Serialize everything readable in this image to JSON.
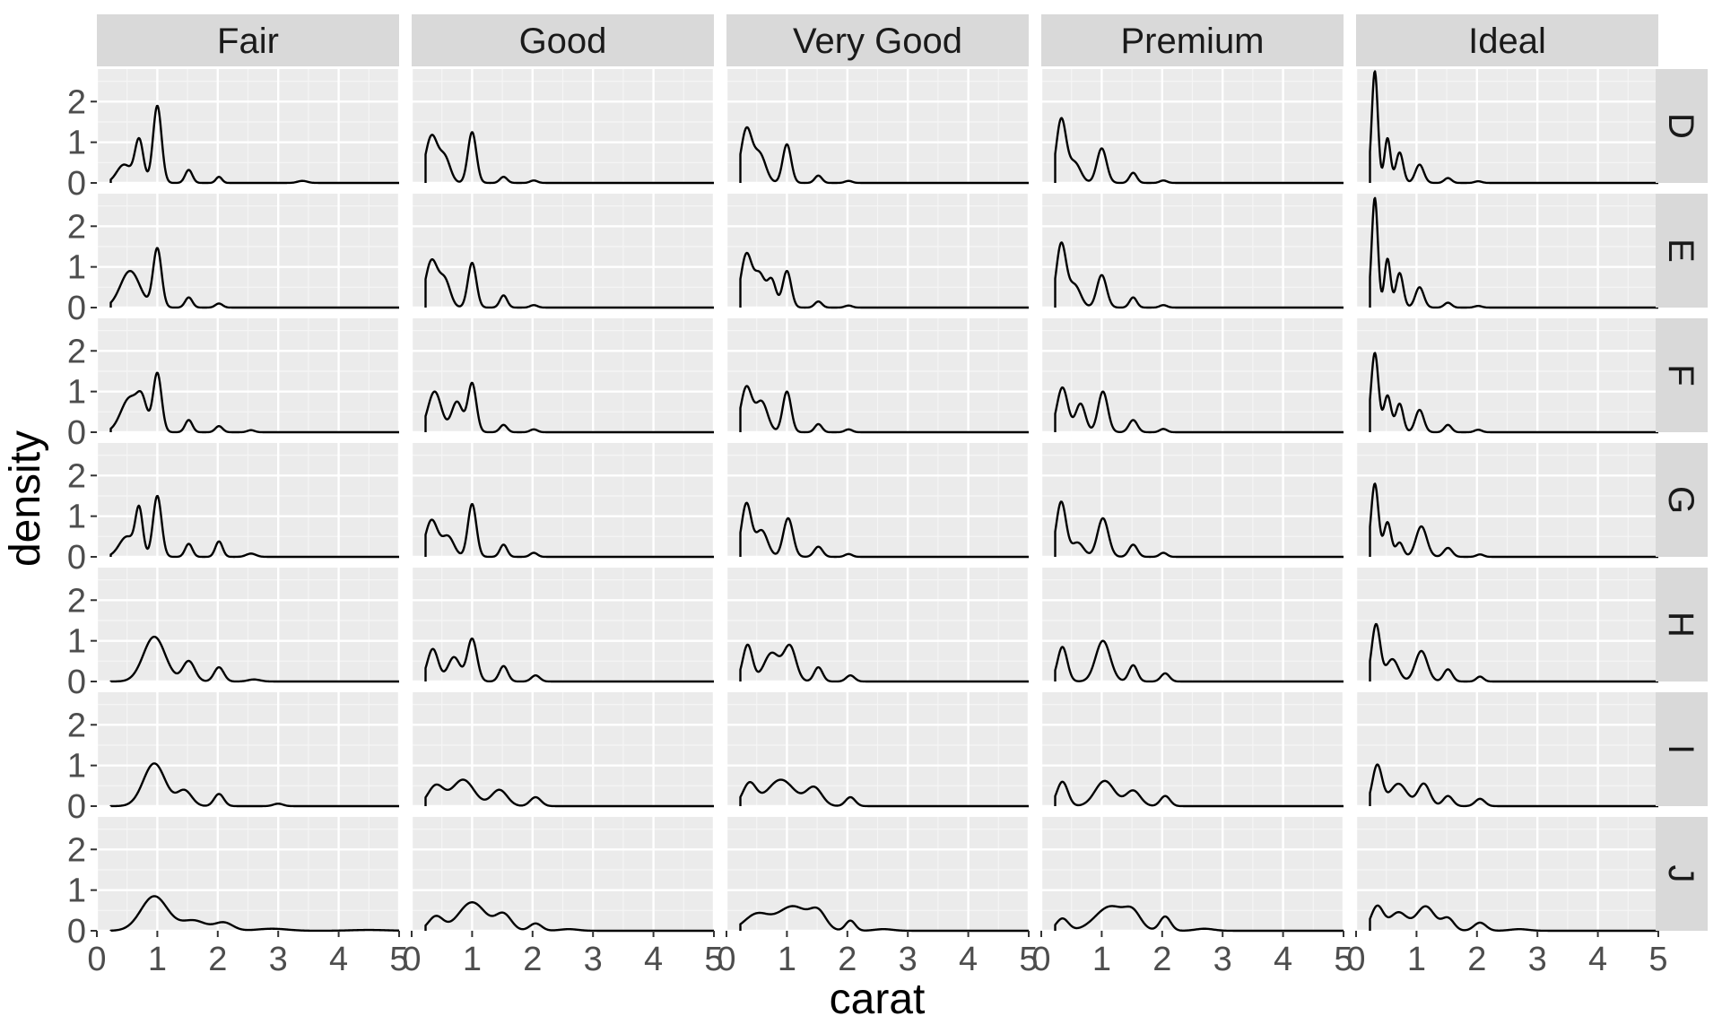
{
  "chart_data": {
    "type": "area",
    "xlabel": "carat",
    "ylabel": "density",
    "xlim": [
      0,
      5
    ],
    "ylim": [
      0,
      2.8
    ],
    "x_ticks": [
      0,
      1,
      2,
      3,
      4,
      5
    ],
    "x_tick_labels": [
      "0",
      "1",
      "2",
      "3",
      "4",
      "5"
    ],
    "y_ticks": [
      0,
      1,
      2
    ],
    "y_tick_labels": [
      "0",
      "1",
      "2"
    ],
    "facet_cols": [
      "Fair",
      "Good",
      "Very Good",
      "Premium",
      "Ideal"
    ],
    "facet_rows": [
      "D",
      "E",
      "F",
      "G",
      "H",
      "I",
      "J"
    ],
    "grid": true,
    "panels": [
      {
        "row": "D",
        "col": "Fair",
        "start": 0.23,
        "peaks": [
          [
            0.45,
            0.45,
            0.12
          ],
          [
            0.7,
            1.05,
            0.07
          ],
          [
            1.0,
            1.9,
            0.07
          ],
          [
            1.52,
            0.32,
            0.06
          ],
          [
            2.02,
            0.15,
            0.05
          ],
          [
            3.4,
            0.05,
            0.08
          ]
        ]
      },
      {
        "row": "D",
        "col": "Good",
        "start": 0.23,
        "peaks": [
          [
            0.33,
            1.15,
            0.1
          ],
          [
            0.55,
            0.6,
            0.09
          ],
          [
            1.0,
            1.25,
            0.07
          ],
          [
            1.52,
            0.15,
            0.06
          ],
          [
            2.02,
            0.06,
            0.06
          ]
        ]
      },
      {
        "row": "D",
        "col": "Very Good",
        "start": 0.23,
        "peaks": [
          [
            0.33,
            1.3,
            0.09
          ],
          [
            0.55,
            0.7,
            0.1
          ],
          [
            1.0,
            0.95,
            0.07
          ],
          [
            1.52,
            0.18,
            0.06
          ],
          [
            2.02,
            0.05,
            0.06
          ]
        ]
      },
      {
        "row": "D",
        "col": "Premium",
        "start": 0.23,
        "peaks": [
          [
            0.33,
            1.55,
            0.08
          ],
          [
            0.55,
            0.5,
            0.1
          ],
          [
            1.0,
            0.85,
            0.08
          ],
          [
            1.52,
            0.25,
            0.06
          ],
          [
            2.02,
            0.06,
            0.06
          ]
        ]
      },
      {
        "row": "D",
        "col": "Ideal",
        "start": 0.23,
        "peaks": [
          [
            0.31,
            2.75,
            0.05
          ],
          [
            0.52,
            1.1,
            0.05
          ],
          [
            0.72,
            0.75,
            0.06
          ],
          [
            1.05,
            0.45,
            0.07
          ],
          [
            1.52,
            0.12,
            0.06
          ],
          [
            2.02,
            0.04,
            0.06
          ]
        ]
      },
      {
        "row": "E",
        "col": "Fair",
        "start": 0.23,
        "peaks": [
          [
            0.55,
            0.9,
            0.16
          ],
          [
            1.0,
            1.45,
            0.07
          ],
          [
            1.52,
            0.25,
            0.06
          ],
          [
            2.02,
            0.1,
            0.06
          ]
        ]
      },
      {
        "row": "E",
        "col": "Good",
        "start": 0.23,
        "peaks": [
          [
            0.33,
            1.15,
            0.1
          ],
          [
            0.55,
            0.65,
            0.09
          ],
          [
            1.0,
            1.1,
            0.07
          ],
          [
            1.52,
            0.3,
            0.06
          ],
          [
            2.02,
            0.06,
            0.06
          ]
        ]
      },
      {
        "row": "E",
        "col": "Very Good",
        "start": 0.23,
        "peaks": [
          [
            0.33,
            1.3,
            0.09
          ],
          [
            0.55,
            0.8,
            0.09
          ],
          [
            0.75,
            0.65,
            0.07
          ],
          [
            1.0,
            0.9,
            0.07
          ],
          [
            1.52,
            0.15,
            0.06
          ],
          [
            2.02,
            0.05,
            0.06
          ]
        ]
      },
      {
        "row": "E",
        "col": "Premium",
        "start": 0.23,
        "peaks": [
          [
            0.33,
            1.55,
            0.08
          ],
          [
            0.55,
            0.55,
            0.1
          ],
          [
            1.0,
            0.8,
            0.08
          ],
          [
            1.52,
            0.25,
            0.06
          ],
          [
            2.02,
            0.06,
            0.06
          ]
        ]
      },
      {
        "row": "E",
        "col": "Ideal",
        "start": 0.23,
        "peaks": [
          [
            0.31,
            2.7,
            0.05
          ],
          [
            0.52,
            1.2,
            0.05
          ],
          [
            0.72,
            0.85,
            0.06
          ],
          [
            1.05,
            0.5,
            0.07
          ],
          [
            1.52,
            0.12,
            0.06
          ],
          [
            2.02,
            0.04,
            0.06
          ]
        ]
      },
      {
        "row": "F",
        "col": "Fair",
        "start": 0.23,
        "peaks": [
          [
            0.55,
            0.85,
            0.15
          ],
          [
            0.75,
            0.6,
            0.08
          ],
          [
            1.0,
            1.45,
            0.07
          ],
          [
            1.52,
            0.3,
            0.06
          ],
          [
            2.02,
            0.15,
            0.06
          ],
          [
            2.55,
            0.05,
            0.06
          ]
        ]
      },
      {
        "row": "F",
        "col": "Good",
        "start": 0.23,
        "peaks": [
          [
            0.38,
            1.0,
            0.11
          ],
          [
            0.75,
            0.75,
            0.09
          ],
          [
            1.0,
            1.2,
            0.07
          ],
          [
            1.52,
            0.18,
            0.06
          ],
          [
            2.02,
            0.07,
            0.06
          ]
        ]
      },
      {
        "row": "F",
        "col": "Very Good",
        "start": 0.23,
        "peaks": [
          [
            0.33,
            1.1,
            0.09
          ],
          [
            0.58,
            0.75,
            0.1
          ],
          [
            1.0,
            1.0,
            0.07
          ],
          [
            1.52,
            0.2,
            0.06
          ],
          [
            2.02,
            0.07,
            0.06
          ]
        ]
      },
      {
        "row": "F",
        "col": "Premium",
        "start": 0.23,
        "peaks": [
          [
            0.35,
            1.1,
            0.09
          ],
          [
            0.65,
            0.7,
            0.08
          ],
          [
            1.02,
            1.0,
            0.08
          ],
          [
            1.52,
            0.3,
            0.07
          ],
          [
            2.02,
            0.08,
            0.06
          ]
        ]
      },
      {
        "row": "F",
        "col": "Ideal",
        "start": 0.23,
        "peaks": [
          [
            0.31,
            1.95,
            0.06
          ],
          [
            0.52,
            0.9,
            0.06
          ],
          [
            0.72,
            0.7,
            0.06
          ],
          [
            1.05,
            0.55,
            0.07
          ],
          [
            1.52,
            0.18,
            0.06
          ],
          [
            2.02,
            0.06,
            0.06
          ]
        ]
      },
      {
        "row": "G",
        "col": "Fair",
        "start": 0.23,
        "peaks": [
          [
            0.5,
            0.5,
            0.13
          ],
          [
            0.7,
            1.1,
            0.06
          ],
          [
            1.0,
            1.5,
            0.07
          ],
          [
            1.52,
            0.32,
            0.06
          ],
          [
            2.02,
            0.38,
            0.06
          ],
          [
            2.55,
            0.08,
            0.08
          ]
        ]
      },
      {
        "row": "G",
        "col": "Good",
        "start": 0.23,
        "peaks": [
          [
            0.33,
            0.9,
            0.1
          ],
          [
            0.6,
            0.5,
            0.1
          ],
          [
            1.0,
            1.3,
            0.07
          ],
          [
            1.52,
            0.3,
            0.06
          ],
          [
            2.02,
            0.1,
            0.06
          ]
        ]
      },
      {
        "row": "G",
        "col": "Very Good",
        "start": 0.23,
        "peaks": [
          [
            0.33,
            1.3,
            0.08
          ],
          [
            0.58,
            0.65,
            0.1
          ],
          [
            1.02,
            0.95,
            0.08
          ],
          [
            1.52,
            0.25,
            0.07
          ],
          [
            2.02,
            0.07,
            0.06
          ]
        ]
      },
      {
        "row": "G",
        "col": "Premium",
        "start": 0.23,
        "peaks": [
          [
            0.33,
            1.35,
            0.08
          ],
          [
            0.6,
            0.35,
            0.1
          ],
          [
            1.02,
            0.95,
            0.09
          ],
          [
            1.52,
            0.3,
            0.07
          ],
          [
            2.02,
            0.1,
            0.06
          ]
        ]
      },
      {
        "row": "G",
        "col": "Ideal",
        "start": 0.23,
        "peaks": [
          [
            0.31,
            1.8,
            0.06
          ],
          [
            0.52,
            0.85,
            0.06
          ],
          [
            0.72,
            0.35,
            0.06
          ],
          [
            1.08,
            0.75,
            0.09
          ],
          [
            1.52,
            0.22,
            0.07
          ],
          [
            2.05,
            0.06,
            0.06
          ]
        ]
      },
      {
        "row": "H",
        "col": "Fair",
        "start": 0.23,
        "peaks": [
          [
            0.95,
            1.1,
            0.18
          ],
          [
            1.52,
            0.5,
            0.1
          ],
          [
            2.02,
            0.35,
            0.08
          ],
          [
            2.6,
            0.05,
            0.1
          ]
        ]
      },
      {
        "row": "H",
        "col": "Good",
        "start": 0.23,
        "peaks": [
          [
            0.35,
            0.8,
            0.09
          ],
          [
            0.7,
            0.6,
            0.1
          ],
          [
            1.0,
            1.05,
            0.08
          ],
          [
            1.52,
            0.38,
            0.07
          ],
          [
            2.05,
            0.15,
            0.07
          ]
        ]
      },
      {
        "row": "H",
        "col": "Very Good",
        "start": 0.23,
        "peaks": [
          [
            0.35,
            0.9,
            0.08
          ],
          [
            0.75,
            0.7,
            0.13
          ],
          [
            1.05,
            0.85,
            0.1
          ],
          [
            1.52,
            0.35,
            0.07
          ],
          [
            2.05,
            0.15,
            0.07
          ]
        ]
      },
      {
        "row": "H",
        "col": "Premium",
        "start": 0.23,
        "peaks": [
          [
            0.35,
            0.85,
            0.08
          ],
          [
            1.02,
            1.0,
            0.12
          ],
          [
            1.52,
            0.4,
            0.07
          ],
          [
            2.05,
            0.2,
            0.07
          ]
        ]
      },
      {
        "row": "H",
        "col": "Ideal",
        "start": 0.23,
        "peaks": [
          [
            0.33,
            1.4,
            0.07
          ],
          [
            0.6,
            0.55,
            0.1
          ],
          [
            1.08,
            0.75,
            0.1
          ],
          [
            1.52,
            0.3,
            0.07
          ],
          [
            2.05,
            0.12,
            0.06
          ]
        ]
      },
      {
        "row": "I",
        "col": "Fair",
        "start": 0.23,
        "peaks": [
          [
            0.95,
            1.05,
            0.18
          ],
          [
            1.45,
            0.38,
            0.12
          ],
          [
            2.02,
            0.3,
            0.08
          ],
          [
            3.0,
            0.06,
            0.08
          ]
        ]
      },
      {
        "row": "I",
        "col": "Good",
        "start": 0.23,
        "peaks": [
          [
            0.4,
            0.5,
            0.13
          ],
          [
            0.85,
            0.65,
            0.18
          ],
          [
            1.45,
            0.4,
            0.13
          ],
          [
            2.05,
            0.22,
            0.09
          ]
        ]
      },
      {
        "row": "I",
        "col": "Very Good",
        "start": 0.23,
        "peaks": [
          [
            0.38,
            0.55,
            0.11
          ],
          [
            0.9,
            0.65,
            0.22
          ],
          [
            1.45,
            0.45,
            0.13
          ],
          [
            2.05,
            0.22,
            0.08
          ]
        ]
      },
      {
        "row": "I",
        "col": "Premium",
        "start": 0.23,
        "peaks": [
          [
            0.35,
            0.6,
            0.09
          ],
          [
            1.05,
            0.62,
            0.16
          ],
          [
            1.52,
            0.38,
            0.12
          ],
          [
            2.05,
            0.25,
            0.08
          ]
        ]
      },
      {
        "row": "I",
        "col": "Ideal",
        "start": 0.23,
        "peaks": [
          [
            0.35,
            1.0,
            0.08
          ],
          [
            0.7,
            0.55,
            0.14
          ],
          [
            1.12,
            0.55,
            0.1
          ],
          [
            1.52,
            0.25,
            0.08
          ],
          [
            2.05,
            0.18,
            0.08
          ]
        ]
      },
      {
        "row": "J",
        "col": "Fair",
        "start": 0.23,
        "peaks": [
          [
            0.95,
            0.85,
            0.22
          ],
          [
            1.6,
            0.25,
            0.2
          ],
          [
            2.1,
            0.2,
            0.15
          ],
          [
            2.9,
            0.05,
            0.25
          ],
          [
            4.5,
            0.02,
            0.3
          ]
        ]
      },
      {
        "row": "J",
        "col": "Good",
        "start": 0.23,
        "peaks": [
          [
            0.4,
            0.35,
            0.12
          ],
          [
            1.0,
            0.7,
            0.22
          ],
          [
            1.52,
            0.4,
            0.13
          ],
          [
            2.05,
            0.18,
            0.1
          ],
          [
            2.6,
            0.04,
            0.15
          ]
        ]
      },
      {
        "row": "J",
        "col": "Very Good",
        "start": 0.23,
        "peaks": [
          [
            0.5,
            0.4,
            0.2
          ],
          [
            1.1,
            0.6,
            0.25
          ],
          [
            1.52,
            0.4,
            0.13
          ],
          [
            2.05,
            0.25,
            0.08
          ],
          [
            2.6,
            0.04,
            0.15
          ]
        ]
      },
      {
        "row": "J",
        "col": "Premium",
        "start": 0.23,
        "peaks": [
          [
            0.35,
            0.3,
            0.1
          ],
          [
            1.15,
            0.6,
            0.25
          ],
          [
            1.52,
            0.35,
            0.13
          ],
          [
            2.05,
            0.35,
            0.09
          ],
          [
            2.7,
            0.05,
            0.15
          ]
        ]
      },
      {
        "row": "J",
        "col": "Ideal",
        "start": 0.23,
        "peaks": [
          [
            0.35,
            0.6,
            0.1
          ],
          [
            0.7,
            0.45,
            0.14
          ],
          [
            1.15,
            0.6,
            0.15
          ],
          [
            1.52,
            0.3,
            0.1
          ],
          [
            2.05,
            0.2,
            0.1
          ],
          [
            2.7,
            0.04,
            0.15
          ]
        ]
      }
    ]
  },
  "colors": {
    "panel_background": "#ebebeb",
    "grid_major": "#ffffff",
    "grid_minor": "#f5f5f5",
    "strip_background": "#d9d9d9",
    "strip_text": "#1a1a1a",
    "tick_text": "#4d4d4d",
    "tick_mark": "#333333",
    "line": "#000000"
  }
}
